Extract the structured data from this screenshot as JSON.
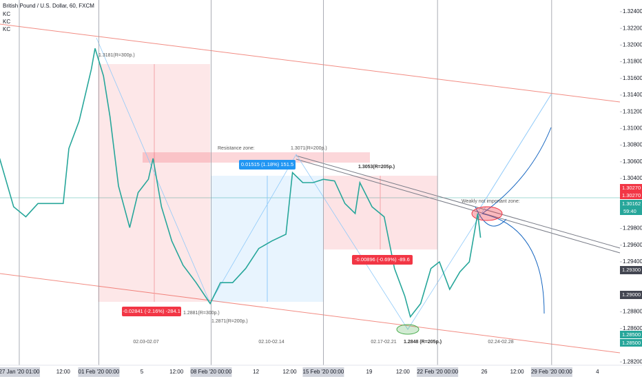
{
  "chart_data": {
    "type": "line",
    "title": "British Pound / U.S. Dollar, 60, FXCM",
    "indicators": [
      "KC",
      "KC",
      "KC"
    ],
    "x": [
      -21,
      -6,
      7,
      20,
      35,
      47,
      53,
      64,
      77,
      81,
      90,
      97,
      106,
      118,
      127,
      138,
      143,
      152,
      163,
      175,
      189,
      204,
      215,
      228,
      242,
      256,
      270,
      285,
      292,
      303,
      314,
      325,
      337,
      348,
      359,
      364,
      377,
      390,
      401,
      412,
      418,
      429,
      440,
      449,
      460,
      471,
      481,
      490,
      493
    ],
    "series": [
      {
        "name": "GBPUSD",
        "color": "#26a69a",
        "values": [
          1.3064,
          1.3006,
          1.2994,
          1.301,
          1.301,
          1.301,
          1.3076,
          1.3109,
          1.3171,
          1.3196,
          1.3163,
          1.3114,
          1.3031,
          1.2981,
          1.3023,
          1.3039,
          1.3064,
          1.3006,
          1.2965,
          1.2936,
          1.2915,
          1.289,
          1.2915,
          1.2915,
          1.2932,
          1.2956,
          1.2965,
          1.2973,
          1.3047,
          1.3035,
          1.3035,
          1.3039,
          1.3037,
          1.301,
          1.2998,
          1.3035,
          1.3006,
          1.2994,
          1.2932,
          1.2899,
          1.2874,
          1.289,
          1.2932,
          1.294,
          1.2907,
          1.2928,
          1.294,
          1.2998,
          1.2969
        ]
      }
    ],
    "xlim": [
      -20.6,
      642
    ],
    "ylim": [
      1.2816,
      1.3254
    ],
    "xticks": [
      {
        "value": 0,
        "label": "27 Jan '20  01:00"
      },
      {
        "value": 47,
        "label": "12:00"
      },
      {
        "value": 85,
        "label": "01 Feb '20  00:00"
      },
      {
        "value": 131,
        "label": "5"
      },
      {
        "value": 168,
        "label": "12:00"
      },
      {
        "value": 205,
        "label": "08 Feb '20  00:00"
      },
      {
        "value": 253,
        "label": "12"
      },
      {
        "value": 289,
        "label": "12:00"
      },
      {
        "value": 325,
        "label": "15 Feb '20  00:00"
      },
      {
        "value": 374,
        "label": "19"
      },
      {
        "value": 410,
        "label": "12:00"
      },
      {
        "value": 447,
        "label": "22 Feb '20  00:00"
      },
      {
        "value": 497,
        "label": "26"
      },
      {
        "value": 532,
        "label": "12:00"
      },
      {
        "value": 569,
        "label": "29 Feb '20  00:00"
      },
      {
        "value": 618,
        "label": "4"
      }
    ],
    "yticks": [
      {
        "value": 1.324,
        "label": "1.32400"
      },
      {
        "value": 1.322,
        "label": "1.32200"
      },
      {
        "value": 1.32,
        "label": "1.32000"
      },
      {
        "value": 1.318,
        "label": "1.31800"
      },
      {
        "value": 1.316,
        "label": "1.31600"
      },
      {
        "value": 1.314,
        "label": "1.31400"
      },
      {
        "value": 1.312,
        "label": "1.31200"
      },
      {
        "value": 1.31,
        "label": "1.31000"
      },
      {
        "value": 1.308,
        "label": "1.30800"
      },
      {
        "value": 1.306,
        "label": "1.30600"
      },
      {
        "value": 1.304,
        "label": "1.30400"
      },
      {
        "value": 1.298,
        "label": "1.29800"
      },
      {
        "value": 1.296,
        "label": "1.29600"
      },
      {
        "value": 1.294,
        "label": "1.29400"
      },
      {
        "value": 1.288,
        "label": "1.28800"
      },
      {
        "value": 1.286,
        "label": "1.28600"
      },
      {
        "value": 1.282,
        "label": "1.28200"
      }
    ],
    "grid": false,
    "annotations": [
      "1.3181(R=300p.)",
      "Resistance zone:",
      "1.3071(R=200p.)",
      "0.01515 (1.18%) 151.5",
      "1.3053(R=205p.)",
      "Weakly not important zone:",
      "-0.02841 (-2.16%) -284.1",
      "1.2881(R=300p.)",
      "1.2871(R=200p.)",
      "-0.00896 (-0.69%) -89.6",
      "1.2848 (R=205p.)",
      "02.03-02.07",
      "02.10-02.14",
      "02.17-02.21",
      "02.24-02.28"
    ],
    "price_labels": [
      "1.30270",
      "1.30270",
      "1.30162",
      "59:40",
      "1.29300",
      "1.29000",
      "1.28500",
      "1.28500"
    ]
  }
}
